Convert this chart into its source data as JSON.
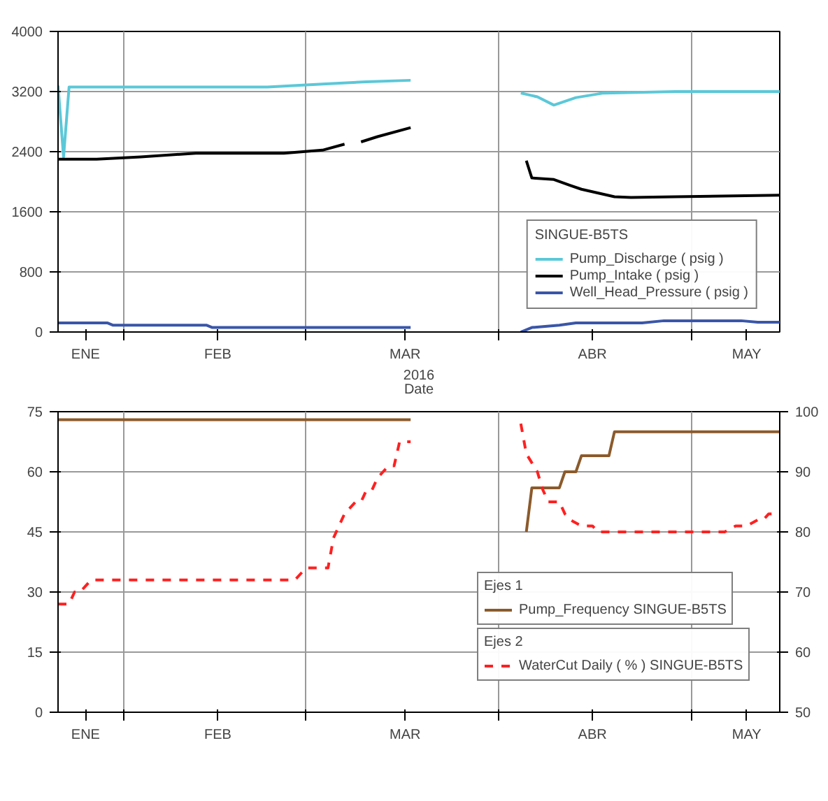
{
  "chart_data": [
    {
      "type": "line",
      "xlabel": "Date",
      "annotations": [
        "2016"
      ],
      "legend_title": "SINGUE-B5TS",
      "legend": "bottom right",
      "grid": true,
      "xlim": [
        "2016-01-11",
        "2016-05-21"
      ],
      "xticks": [
        {
          "value": "2016-01-16",
          "label": "ENE"
        },
        {
          "value": "2016-01-23",
          "label": null
        },
        {
          "value": "2016-02-09",
          "label": "FEB"
        },
        {
          "value": "2016-02-25",
          "label": null
        },
        {
          "value": "2016-03-14",
          "label": "MAR"
        },
        {
          "value": "2016-03-31",
          "label": null
        },
        {
          "value": "2016-04-17",
          "label": "ABR"
        },
        {
          "value": "2016-05-05",
          "label": null
        },
        {
          "value": "2016-05-15",
          "label": "MAY"
        }
      ],
      "ylim": [
        0,
        4000
      ],
      "yticks": [
        0,
        800,
        1600,
        2400,
        3200,
        4000
      ],
      "series": [
        {
          "name": "Pump_Discharge ( psig )",
          "color": "#5bc8d8",
          "x": [
            "2016-01-11",
            "2016-01-12",
            "2016-01-13",
            "2016-01-26",
            "2016-02-18",
            "2016-02-28",
            "2016-03-07",
            "2016-03-15",
            "2016-03-25",
            "2016-04-04",
            "2016-04-07",
            "2016-04-10",
            "2016-04-14",
            "2016-04-19",
            "2016-05-02",
            "2016-05-21"
          ],
          "values": [
            3280,
            2330,
            3260,
            3260,
            3260,
            3300,
            3330,
            3350,
            null,
            3180,
            3130,
            3020,
            3120,
            3180,
            3200,
            3200
          ]
        },
        {
          "name": "Pump_Intake ( psig )",
          "color": "#000000",
          "x": [
            "2016-01-11",
            "2016-01-18",
            "2016-01-26",
            "2016-02-05",
            "2016-02-18",
            "2016-02-21",
            "2016-02-28",
            "2016-03-03",
            "2016-03-04",
            "2016-03-06",
            "2016-03-09",
            "2016-03-15",
            "2016-03-25",
            "2016-04-05",
            "2016-04-06",
            "2016-04-10",
            "2016-04-13",
            "2016-04-15",
            "2016-04-21",
            "2016-04-24",
            "2016-05-02",
            "2016-05-21"
          ],
          "values": [
            2300,
            2300,
            2330,
            2380,
            2380,
            2380,
            2420,
            2500,
            null,
            2530,
            2600,
            2720,
            null,
            2280,
            2050,
            2030,
            1950,
            1900,
            1800,
            1790,
            1800,
            1820
          ]
        },
        {
          "name": "Well_Head_Pressure ( psig )",
          "color": "#3a56a8",
          "x": [
            "2016-01-11",
            "2016-01-20",
            "2016-01-21",
            "2016-02-07",
            "2016-02-08",
            "2016-03-15",
            "2016-03-25",
            "2016-04-04",
            "2016-04-06",
            "2016-04-11",
            "2016-04-14",
            "2016-04-26",
            "2016-04-30",
            "2016-05-14",
            "2016-05-17",
            "2016-05-21"
          ],
          "values": [
            120,
            120,
            90,
            90,
            60,
            60,
            null,
            0,
            60,
            90,
            120,
            120,
            150,
            150,
            130,
            130
          ]
        }
      ]
    },
    {
      "type": "line",
      "legend_title": [
        "Ejes 1",
        "Ejes 2"
      ],
      "legend": "bottom right",
      "grid": true,
      "xlim": [
        "2016-01-11",
        "2016-05-21"
      ],
      "xticks": [
        {
          "value": "2016-01-16",
          "label": "ENE"
        },
        {
          "value": "2016-01-23",
          "label": null
        },
        {
          "value": "2016-02-09",
          "label": "FEB"
        },
        {
          "value": "2016-02-25",
          "label": null
        },
        {
          "value": "2016-03-14",
          "label": "MAR"
        },
        {
          "value": "2016-03-31",
          "label": null
        },
        {
          "value": "2016-04-17",
          "label": "ABR"
        },
        {
          "value": "2016-05-05",
          "label": null
        },
        {
          "value": "2016-05-15",
          "label": "MAY"
        }
      ],
      "ylim": [
        0,
        75
      ],
      "yticks": [
        0,
        15,
        30,
        45,
        60,
        75
      ],
      "y2lim": [
        50,
        100
      ],
      "y2ticks": [
        50,
        60,
        70,
        80,
        90,
        100
      ],
      "series": [
        {
          "name": "Pump_Frequency SINGUE-B5TS",
          "color": "#8b5a2b",
          "x": [
            "2016-01-11",
            "2016-03-15",
            "2016-03-25",
            "2016-04-05",
            "2016-04-06",
            "2016-04-11",
            "2016-04-12",
            "2016-04-14",
            "2016-04-15",
            "2016-04-20",
            "2016-04-21",
            "2016-05-21"
          ],
          "values": [
            73,
            73,
            null,
            45,
            56,
            56,
            60,
            60,
            64,
            64,
            70,
            70
          ]
        },
        {
          "name": "WaterCut Daily ( % ) SINGUE-B5TS",
          "color": "#ff2020",
          "axis": "y2",
          "line_style": "dashed",
          "x": [
            "2016-01-11",
            "2016-01-13",
            "2016-01-14",
            "2016-01-15",
            "2016-01-16",
            "2016-01-17",
            "2016-01-21",
            "2016-02-23",
            "2016-02-25",
            "2016-02-29",
            "2016-03-01",
            "2016-03-03",
            "2016-03-05",
            "2016-03-06",
            "2016-03-07",
            "2016-03-08",
            "2016-03-09",
            "2016-03-10",
            "2016-03-11",
            "2016-03-12",
            "2016-03-13",
            "2016-03-15",
            "2016-03-25",
            "2016-04-04",
            "2016-04-05",
            "2016-04-07",
            "2016-04-08",
            "2016-04-09",
            "2016-04-11",
            "2016-04-12",
            "2016-04-13",
            "2016-04-15",
            "2016-04-17",
            "2016-04-18",
            "2016-05-11",
            "2016-05-13",
            "2016-05-15",
            "2016-05-17",
            "2016-05-18",
            "2016-05-19",
            "2016-05-21"
          ],
          "values": [
            68,
            68,
            70,
            70,
            71,
            72,
            72,
            72,
            74,
            74,
            79,
            83,
            85,
            85,
            87,
            87,
            89,
            90,
            91,
            91,
            95,
            95,
            null,
            98,
            93,
            90,
            87,
            85,
            85,
            83,
            82,
            81,
            81,
            80,
            80,
            81,
            81,
            82,
            82,
            83,
            83
          ]
        }
      ]
    }
  ]
}
